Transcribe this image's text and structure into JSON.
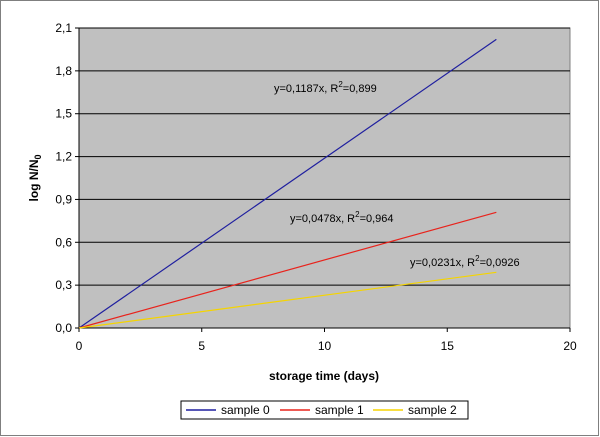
{
  "chart_data": {
    "type": "line",
    "xlabel": "storage time (days)",
    "ylabel_main": "log N/N",
    "ylabel_sub": "0",
    "xlim": [
      0,
      20
    ],
    "ylim": [
      0,
      2.1
    ],
    "x_ticks": [
      "0",
      "5",
      "10",
      "15",
      "20"
    ],
    "y_ticks": [
      "0,0",
      "0,3",
      "0,6",
      "0,9",
      "1,2",
      "1,5",
      "1,8",
      "2,1"
    ],
    "grid": "horizontal",
    "legend_position": "bottom",
    "series": [
      {
        "name": "sample 0",
        "color": "#1f1f9f",
        "x": [
          0,
          17
        ],
        "y": [
          0,
          2.02
        ],
        "equation": "y=0,1187x, R",
        "r2": "=0,899"
      },
      {
        "name": "sample 1",
        "color": "#e8231c",
        "x": [
          0,
          17
        ],
        "y": [
          0,
          0.81
        ],
        "equation": "y=0,0478x, R",
        "r2": "=0,964"
      },
      {
        "name": "sample 2",
        "color": "#f5d400",
        "x": [
          0,
          17
        ],
        "y": [
          0,
          0.39
        ],
        "equation": "y=0,0231x, R",
        "r2": "=0,0926"
      }
    ]
  }
}
